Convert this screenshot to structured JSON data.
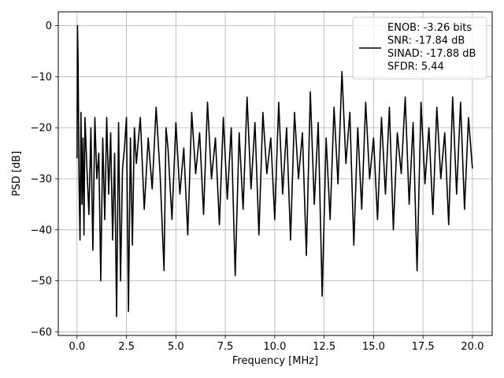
{
  "chart_data": {
    "type": "line",
    "title": "",
    "xlabel": "Frequency [MHz]",
    "ylabel": "PSD [dB]",
    "xlim": [
      -0.95,
      21.0
    ],
    "ylim": [
      -60.7,
      2.7
    ],
    "xticks": [
      0.0,
      2.5,
      5.0,
      7.5,
      10.0,
      12.5,
      15.0,
      17.5,
      20.0
    ],
    "xtick_labels": [
      "0.0",
      "2.5",
      "5.0",
      "7.5",
      "10.0",
      "12.5",
      "15.0",
      "17.5",
      "20.0"
    ],
    "yticks": [
      0,
      -10,
      -20,
      -30,
      -40,
      -50,
      -60
    ],
    "ytick_labels": [
      "0",
      "−10",
      "−20",
      "−30",
      "−40",
      "−50",
      "−60"
    ],
    "grid": true,
    "legend_position": "top-right",
    "series_color": "#000000",
    "series": [
      {
        "name": "ENOB: -3.26 bits\nSNR: -17.84 dB\nSINAD: -17.88 dB\nSFDR: 5.44",
        "legend_lines": [
          "ENOB: -3.26 bits",
          "SNR: -17.84 dB",
          "SINAD: -17.88 dB",
          "SFDR: 5.44"
        ],
        "x": [
          0.0,
          0.02,
          0.05,
          0.1,
          0.15,
          0.2,
          0.25,
          0.3,
          0.35,
          0.4,
          0.5,
          0.6,
          0.7,
          0.8,
          0.9,
          1.0,
          1.1,
          1.2,
          1.3,
          1.4,
          1.5,
          1.6,
          1.7,
          1.8,
          1.9,
          2.0,
          2.1,
          2.2,
          2.3,
          2.4,
          2.5,
          2.6,
          2.7,
          2.8,
          2.9,
          3.0,
          3.2,
          3.4,
          3.6,
          3.8,
          4.0,
          4.2,
          4.4,
          4.5,
          4.6,
          4.8,
          5.0,
          5.2,
          5.4,
          5.6,
          5.8,
          6.0,
          6.2,
          6.4,
          6.6,
          6.8,
          7.0,
          7.2,
          7.4,
          7.6,
          7.8,
          8.0,
          8.2,
          8.4,
          8.6,
          8.8,
          9.0,
          9.2,
          9.4,
          9.6,
          9.8,
          10.0,
          10.2,
          10.4,
          10.6,
          10.8,
          11.0,
          11.2,
          11.4,
          11.6,
          11.8,
          12.0,
          12.2,
          12.4,
          12.6,
          12.8,
          13.0,
          13.2,
          13.4,
          13.6,
          13.8,
          14.0,
          14.2,
          14.4,
          14.6,
          14.8,
          15.0,
          15.2,
          15.4,
          15.6,
          15.8,
          16.0,
          16.2,
          16.4,
          16.6,
          16.8,
          17.0,
          17.2,
          17.4,
          17.6,
          17.8,
          18.0,
          18.2,
          18.4,
          18.6,
          18.8,
          19.0,
          19.2,
          19.4,
          19.6,
          19.8,
          20.0
        ],
        "values": [
          -26,
          0,
          -6,
          -30,
          -42,
          -17,
          -35,
          -22,
          -41,
          -18,
          -28,
          -37,
          -20,
          -44,
          -18,
          -30,
          -25,
          -50,
          -22,
          -38,
          -18,
          -33,
          -21,
          -42,
          -25,
          -57,
          -19,
          -50,
          -28,
          -24,
          -18,
          -56,
          -22,
          -43,
          -20,
          -27,
          -18,
          -36,
          -22,
          -32,
          -16,
          -29,
          -48,
          -20,
          -24,
          -38,
          -19,
          -33,
          -24,
          -41,
          -17,
          -29,
          -21,
          -37,
          -15,
          -30,
          -22,
          -39,
          -18,
          -34,
          -20,
          -49,
          -21,
          -36,
          -14,
          -32,
          -19,
          -41,
          -17,
          -29,
          -22,
          -38,
          -15,
          -33,
          -20,
          -42,
          -17,
          -30,
          -21,
          -45,
          -13,
          -35,
          -19,
          -53,
          -22,
          -38,
          -16,
          -31,
          -9,
          -27,
          -17,
          -43,
          -20,
          -36,
          -15,
          -30,
          -22,
          -38,
          -18,
          -33,
          -16,
          -40,
          -21,
          -29,
          -14,
          -35,
          -19,
          -48,
          -15,
          -31,
          -20,
          -37,
          -16,
          -30,
          -21,
          -39,
          -14,
          -33,
          -15,
          -36,
          -18,
          -28
        ]
      }
    ]
  }
}
